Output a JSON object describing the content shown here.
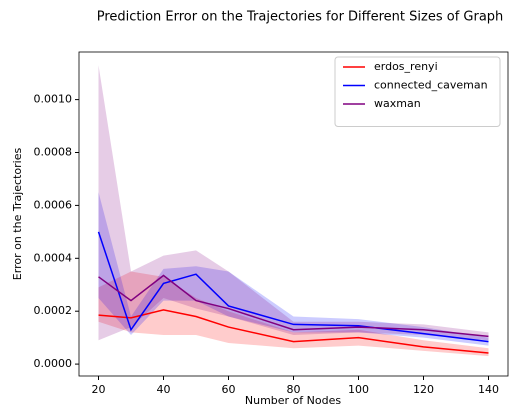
{
  "chart_data": {
    "type": "line",
    "title": "Prediction Error on the Trajectories for Different Sizes of Graph",
    "xlabel": "Number of Nodes",
    "ylabel": "Error on the Trajectories",
    "x": [
      20,
      30,
      40,
      50,
      60,
      80,
      100,
      120,
      140
    ],
    "series": [
      {
        "name": "erdos_renyi",
        "color": "#ff0000",
        "values": [
          0.000185,
          0.000175,
          0.000205,
          0.00018,
          0.00014,
          8.5e-05,
          0.0001,
          6.5e-05,
          4.2e-05
        ],
        "lower": [
          0.00016,
          0.00012,
          0.00011,
          0.00011,
          8e-05,
          6e-05,
          7e-05,
          5e-05,
          3e-05
        ],
        "upper": [
          0.00029,
          0.00035,
          0.00033,
          0.00025,
          0.0002,
          0.00012,
          0.00013,
          9e-05,
          6e-05
        ]
      },
      {
        "name": "connected_caveman",
        "color": "#0000ff",
        "values": [
          0.0005,
          0.00013,
          0.000305,
          0.00034,
          0.00022,
          0.00015,
          0.000145,
          0.000115,
          8.5e-05
        ],
        "lower": [
          0.00025,
          0.00011,
          0.00024,
          0.00024,
          0.00018,
          0.00012,
          0.00012,
          0.0001,
          7e-05
        ],
        "upper": [
          0.00065,
          0.00018,
          0.00036,
          0.00037,
          0.00035,
          0.00018,
          0.00017,
          0.00014,
          0.0001
        ]
      },
      {
        "name": "waxman",
        "color": "#800080",
        "values": [
          0.00033,
          0.00024,
          0.000335,
          0.00024,
          0.00021,
          0.00013,
          0.00014,
          0.00013,
          0.000105
        ],
        "lower": [
          9e-05,
          0.00014,
          0.00025,
          0.00021,
          0.00018,
          0.00011,
          0.00012,
          0.00011,
          9e-05
        ],
        "upper": [
          0.00113,
          0.00035,
          0.00041,
          0.00043,
          0.00035,
          0.00016,
          0.00016,
          0.00015,
          0.00012
        ]
      }
    ],
    "xlim": [
      14,
      146
    ],
    "xticks": [
      20,
      40,
      60,
      80,
      100,
      120,
      140
    ],
    "ylim": [
      -4.5e-05,
      0.00118
    ],
    "yticks": [
      {
        "value": 0,
        "label": "0.0000"
      },
      {
        "value": 0.0002,
        "label": "0.0002"
      },
      {
        "value": 0.0004,
        "label": "0.0004"
      },
      {
        "value": 0.0006,
        "label": "0.0006"
      },
      {
        "value": 0.0008,
        "label": "0.0008"
      },
      {
        "value": 0.001,
        "label": "0.0010"
      }
    ],
    "grid": false,
    "legend": "upper-right"
  }
}
